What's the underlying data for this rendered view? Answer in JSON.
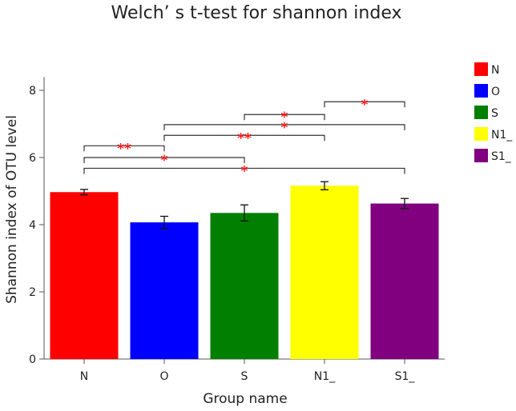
{
  "chart_data": {
    "type": "bar",
    "title": "Welch’ s t-test for shannon index",
    "xlabel": "Group name",
    "ylabel": "Shannon index of OTU level",
    "categories": [
      "N",
      "O",
      "S",
      "N1_",
      "S1_"
    ],
    "values": [
      4.97,
      4.07,
      4.35,
      5.16,
      4.63
    ],
    "errors": [
      0.08,
      0.18,
      0.24,
      0.12,
      0.15
    ],
    "colors": [
      "#ff0000",
      "#0000ff",
      "#007f00",
      "#ffff00",
      "#800080"
    ],
    "ylim": [
      0,
      8.4
    ],
    "yticks": [
      0,
      2,
      4,
      6,
      8
    ],
    "grid": false,
    "legend": {
      "position": "top-right",
      "entries": [
        "N",
        "O",
        "S",
        "N1_",
        "S1_"
      ]
    },
    "significance": [
      {
        "from": "N",
        "to": "O",
        "y": 6.35,
        "label": "**"
      },
      {
        "from": "N",
        "to": "S",
        "y": 6.0,
        "label": "*"
      },
      {
        "from": "N",
        "to": "S1_",
        "y": 5.68,
        "label": "*"
      },
      {
        "from": "O",
        "to": "N1_",
        "y": 6.66,
        "label": "**"
      },
      {
        "from": "O",
        "to": "S1_",
        "y": 6.98,
        "label": "*"
      },
      {
        "from": "S",
        "to": "N1_",
        "y": 7.28,
        "label": "*"
      },
      {
        "from": "N1_",
        "to": "S1_",
        "y": 7.66,
        "label": "*"
      }
    ]
  }
}
